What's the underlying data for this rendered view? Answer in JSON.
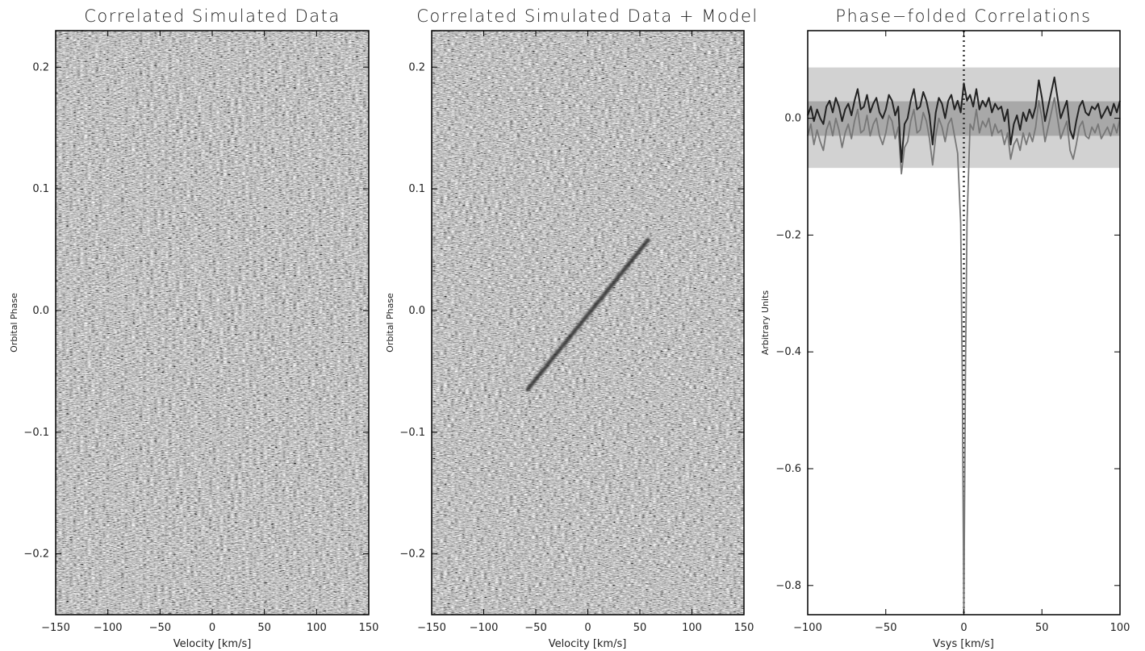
{
  "chart_data": [
    {
      "type": "heatmap",
      "title": "Correlated Simulated Data",
      "xlabel": "Velocity [km/s]",
      "ylabel": "Orbital Phase",
      "xlim": [
        -150,
        150
      ],
      "ylim": [
        -0.25,
        0.23
      ],
      "xticks": [
        -150,
        -100,
        -50,
        0,
        50,
        100,
        150
      ],
      "xtick_labels": [
        "−150",
        "−100",
        "−50",
        "0",
        "50",
        "100",
        "150"
      ],
      "yticks": [
        -0.2,
        -0.1,
        0.0,
        0.1,
        0.2
      ],
      "ytick_labels": [
        "−0.2",
        "−0.1",
        "0.0",
        "0.1",
        "0.2"
      ],
      "colormap": "grayscale noise",
      "signal": null
    },
    {
      "type": "heatmap",
      "title": "Correlated Simulated Data + Model",
      "xlabel": "Velocity [km/s]",
      "ylabel": "Orbital Phase",
      "xlim": [
        -150,
        150
      ],
      "ylim": [
        -0.25,
        0.23
      ],
      "xticks": [
        -150,
        -100,
        -50,
        0,
        50,
        100,
        150
      ],
      "xtick_labels": [
        "−150",
        "−100",
        "−50",
        "0",
        "50",
        "100",
        "150"
      ],
      "yticks": [
        -0.2,
        -0.1,
        0.0,
        0.1,
        0.2
      ],
      "ytick_labels": [
        "−0.2",
        "−0.1",
        "0.0",
        "0.1",
        "0.2"
      ],
      "colormap": "grayscale noise",
      "signal": {
        "from": [
          -58,
          -0.065
        ],
        "to": [
          58,
          0.058
        ],
        "color": "#2a2a2a"
      }
    },
    {
      "type": "line",
      "title": "Phase−folded Correlations",
      "xlabel": "Vsys [km/s]",
      "ylabel": "Arbitrary Units",
      "xlim": [
        -100,
        100
      ],
      "ylim": [
        -0.85,
        0.15
      ],
      "xticks": [
        -100,
        -50,
        0,
        50,
        100
      ],
      "xtick_labels": [
        "−100",
        "−50",
        "0",
        "50",
        "100"
      ],
      "yticks": [
        -0.8,
        -0.6,
        -0.4,
        -0.2,
        0.0
      ],
      "ytick_labels": [
        "−0.8",
        "−0.6",
        "−0.4",
        "−0.2",
        "0.0"
      ],
      "bands": [
        {
          "y": [
            -0.085,
            0.087
          ],
          "color": "#d2d2d2"
        },
        {
          "y": [
            -0.03,
            0.029
          ],
          "color": "#a8a8a8"
        }
      ],
      "vline": {
        "x": 0,
        "style": "dotted",
        "color": "#333333"
      },
      "series": [
        {
          "color": "#222222",
          "x": [
            -100,
            -98,
            -96,
            -94,
            -92,
            -90,
            -88,
            -86,
            -84,
            -82,
            -80,
            -78,
            -76,
            -74,
            -72,
            -70,
            -68,
            -66,
            -64,
            -62,
            -60,
            -58,
            -56,
            -54,
            -52,
            -50,
            -48,
            -46,
            -44,
            -42,
            -40,
            -38,
            -36,
            -34,
            -32,
            -30,
            -28,
            -26,
            -24,
            -22,
            -20,
            -18,
            -16,
            -14,
            -12,
            -10,
            -8,
            -6,
            -4,
            -2,
            0,
            2,
            4,
            6,
            8,
            10,
            12,
            14,
            16,
            18,
            20,
            22,
            24,
            26,
            28,
            30,
            32,
            34,
            36,
            38,
            40,
            42,
            44,
            46,
            48,
            50,
            52,
            54,
            56,
            58,
            60,
            62,
            64,
            66,
            68,
            70,
            72,
            74,
            76,
            78,
            80,
            82,
            84,
            86,
            88,
            90,
            92,
            94,
            96,
            98,
            100
          ],
          "y": [
            0.005,
            0.02,
            -0.005,
            0.015,
            0.0,
            -0.01,
            0.02,
            0.03,
            0.01,
            0.035,
            0.02,
            -0.005,
            0.015,
            0.025,
            0.005,
            0.03,
            0.05,
            0.015,
            0.02,
            0.04,
            0.01,
            0.025,
            0.035,
            0.01,
            0.0,
            0.015,
            0.04,
            0.03,
            0.005,
            0.02,
            -0.075,
            -0.01,
            0.0,
            0.03,
            0.05,
            0.015,
            0.02,
            0.045,
            0.03,
            0.005,
            -0.045,
            0.01,
            0.035,
            0.025,
            0.0,
            0.03,
            0.04,
            0.015,
            0.03,
            0.01,
            0.06,
            0.03,
            0.04,
            0.02,
            0.05,
            0.015,
            0.03,
            0.02,
            0.035,
            0.01,
            0.025,
            0.015,
            0.02,
            -0.005,
            0.015,
            -0.045,
            -0.01,
            0.005,
            -0.02,
            0.01,
            -0.005,
            0.015,
            0.0,
            0.02,
            0.065,
            0.035,
            -0.005,
            0.02,
            0.045,
            0.07,
            0.035,
            0.0,
            0.015,
            0.03,
            -0.02,
            -0.035,
            -0.005,
            0.02,
            0.03,
            0.01,
            0.005,
            0.02,
            0.015,
            0.025,
            0.0,
            0.01,
            0.02,
            0.005,
            0.025,
            0.01,
            0.03
          ]
        },
        {
          "color": "#777777",
          "x": [
            -100,
            -98,
            -96,
            -94,
            -92,
            -90,
            -88,
            -86,
            -84,
            -82,
            -80,
            -78,
            -76,
            -74,
            -72,
            -70,
            -68,
            -66,
            -64,
            -62,
            -60,
            -58,
            -56,
            -54,
            -52,
            -50,
            -48,
            -46,
            -44,
            -42,
            -40,
            -38,
            -36,
            -34,
            -32,
            -30,
            -28,
            -26,
            -24,
            -22,
            -20,
            -18,
            -16,
            -14,
            -12,
            -10,
            -8,
            -6,
            -4,
            -2,
            -1,
            0,
            1,
            2,
            4,
            6,
            8,
            10,
            12,
            14,
            16,
            18,
            20,
            22,
            24,
            26,
            28,
            30,
            32,
            34,
            36,
            38,
            40,
            42,
            44,
            46,
            48,
            50,
            52,
            54,
            56,
            58,
            60,
            62,
            64,
            66,
            68,
            70,
            72,
            74,
            76,
            78,
            80,
            82,
            84,
            86,
            88,
            90,
            92,
            94,
            96,
            98,
            100
          ],
          "y": [
            -0.03,
            -0.01,
            -0.045,
            -0.02,
            -0.04,
            -0.055,
            -0.02,
            -0.005,
            -0.03,
            0.0,
            -0.02,
            -0.05,
            -0.025,
            -0.01,
            -0.035,
            -0.005,
            0.015,
            -0.025,
            -0.02,
            0.005,
            -0.03,
            -0.01,
            0.0,
            -0.03,
            -0.045,
            -0.025,
            0.005,
            -0.005,
            -0.035,
            -0.015,
            -0.095,
            -0.05,
            -0.04,
            -0.005,
            0.015,
            -0.025,
            -0.02,
            0.01,
            -0.005,
            -0.035,
            -0.08,
            -0.03,
            0.0,
            -0.015,
            -0.04,
            -0.01,
            0.0,
            -0.03,
            -0.06,
            -0.18,
            -0.45,
            -0.85,
            -0.45,
            -0.18,
            -0.01,
            -0.02,
            0.015,
            -0.025,
            -0.005,
            -0.015,
            0.0,
            -0.03,
            -0.01,
            -0.025,
            -0.02,
            -0.045,
            -0.025,
            -0.07,
            -0.045,
            -0.035,
            -0.055,
            -0.025,
            -0.045,
            -0.025,
            -0.04,
            -0.015,
            0.03,
            0.0,
            -0.04,
            -0.015,
            0.01,
            0.035,
            0.0,
            -0.035,
            -0.02,
            -0.005,
            -0.055,
            -0.07,
            -0.045,
            -0.015,
            -0.005,
            -0.03,
            -0.035,
            -0.015,
            -0.025,
            -0.01,
            -0.035,
            -0.025,
            -0.015,
            -0.03,
            -0.01,
            -0.025,
            0.0
          ]
        }
      ]
    }
  ]
}
